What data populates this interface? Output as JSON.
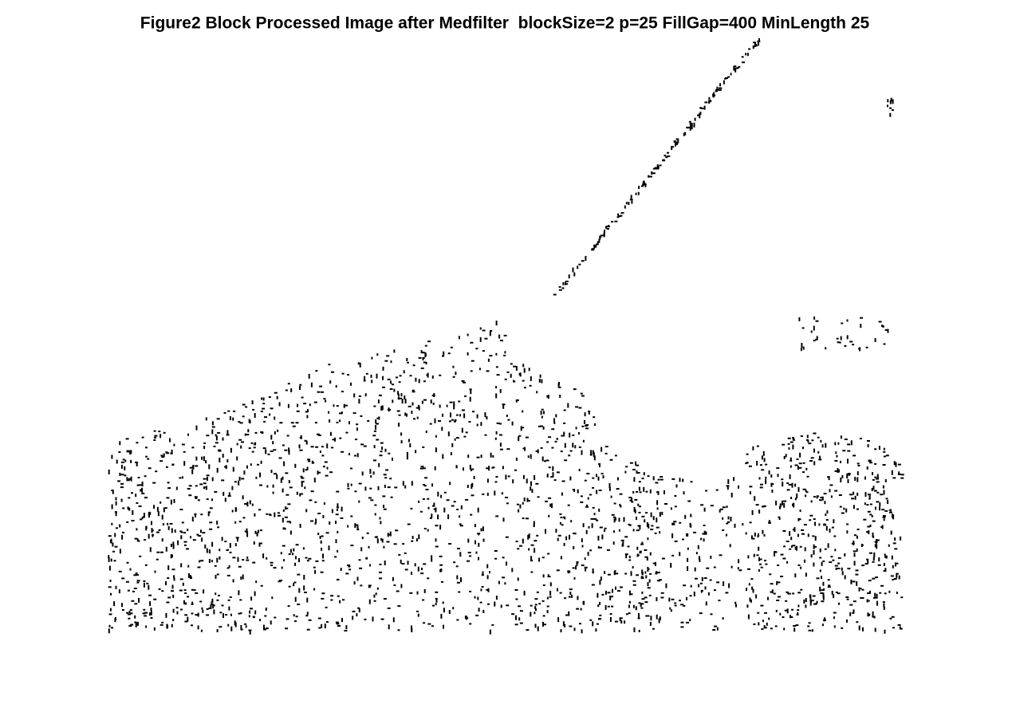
{
  "title": "Figure2 Block Processed Image after Medfilter  blockSize=2 p=25 FillGap=400 MinLength 25"
}
